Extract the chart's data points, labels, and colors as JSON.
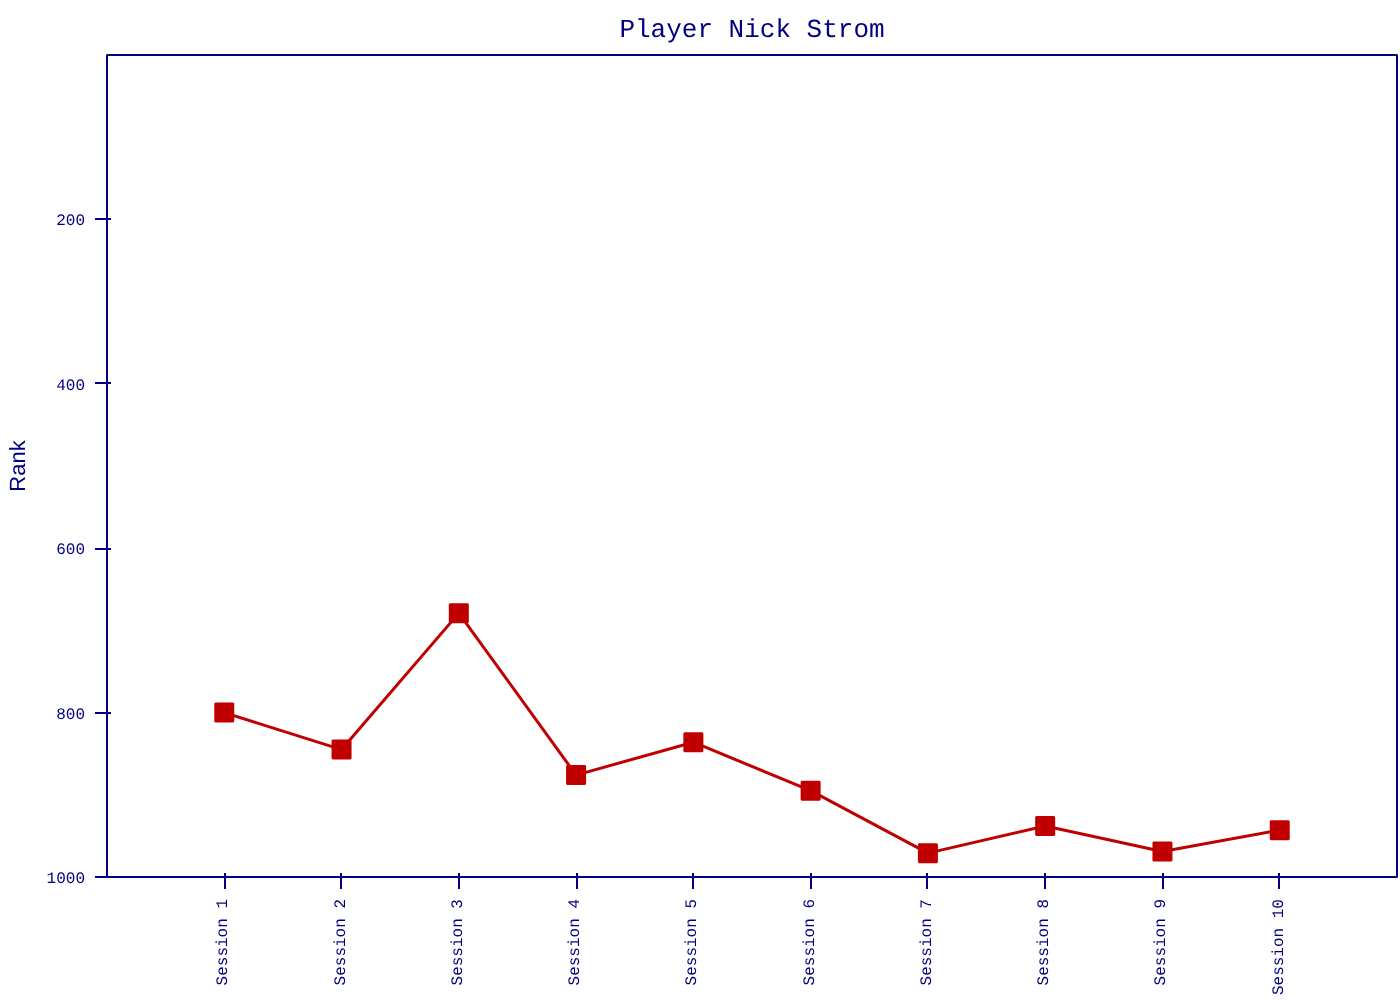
{
  "chart_data": {
    "type": "line",
    "title": "Player Nick Strom",
    "ylabel": "Rank",
    "categories": [
      "Session 1",
      "Session 2",
      "Session 3",
      "Session 4",
      "Session 5",
      "Session 6",
      "Session 7",
      "Session 8",
      "Session 9",
      "Session 10"
    ],
    "series": [
      {
        "color": "#c00000",
        "values": [
          800,
          845,
          679,
          876,
          836,
          895,
          971,
          938,
          969,
          943
        ]
      }
    ],
    "ylim": [
      1000,
      0
    ],
    "yticks": [
      200,
      400,
      600,
      800,
      1000
    ],
    "grid": false,
    "marker": "square",
    "line_style": "solid"
  }
}
